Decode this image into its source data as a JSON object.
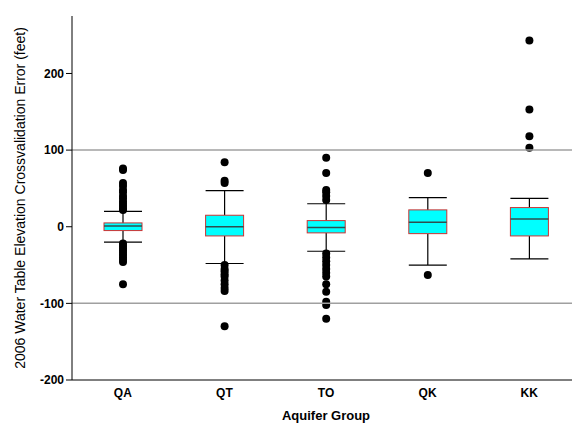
{
  "chart_data": {
    "type": "box",
    "x_label": "Aquifer Group",
    "y_label": "2006 Water Table Elevation Crossvalidation Error (feet)",
    "categories": [
      "QA",
      "QT",
      "TO",
      "QK",
      "KK"
    ],
    "boxes": [
      {
        "whisker_low": -20,
        "q1": -5,
        "median": 1,
        "q3": 5,
        "whisker_high": 20,
        "outliers": [
          76,
          74,
          57,
          53,
          48,
          45,
          40,
          37,
          33,
          30,
          27,
          24,
          22,
          -22,
          -25,
          -28,
          -31,
          -34,
          -37,
          -40,
          -43,
          -46,
          -75
        ]
      },
      {
        "whisker_low": -48,
        "q1": -12,
        "median": 0,
        "q3": 15,
        "whisker_high": 47,
        "outliers": [
          84,
          60,
          57,
          -50,
          -55,
          -58,
          -62,
          -65,
          -70,
          -75,
          -80,
          -84,
          -130
        ]
      },
      {
        "whisker_low": -32,
        "q1": -8,
        "median": -1,
        "q3": 8,
        "whisker_high": 30,
        "outliers": [
          90,
          70,
          48,
          45,
          40,
          35,
          -35,
          -40,
          -45,
          -50,
          -55,
          -60,
          -65,
          -75,
          -85,
          -98,
          -102,
          -120
        ]
      },
      {
        "whisker_low": -50,
        "q1": -9,
        "median": 6,
        "q3": 22,
        "whisker_high": 38,
        "outliers": [
          70,
          -63
        ]
      },
      {
        "whisker_low": -42,
        "q1": -12,
        "median": 10,
        "q3": 25,
        "whisker_high": 37,
        "outliers": [
          243,
          153,
          118,
          103
        ]
      }
    ],
    "color": "#00ffff",
    "ylim": [
      -200,
      275
    ],
    "yticks": [
      -200,
      -100,
      0,
      100,
      200
    ],
    "reference_lines": [
      -100,
      100
    ]
  }
}
